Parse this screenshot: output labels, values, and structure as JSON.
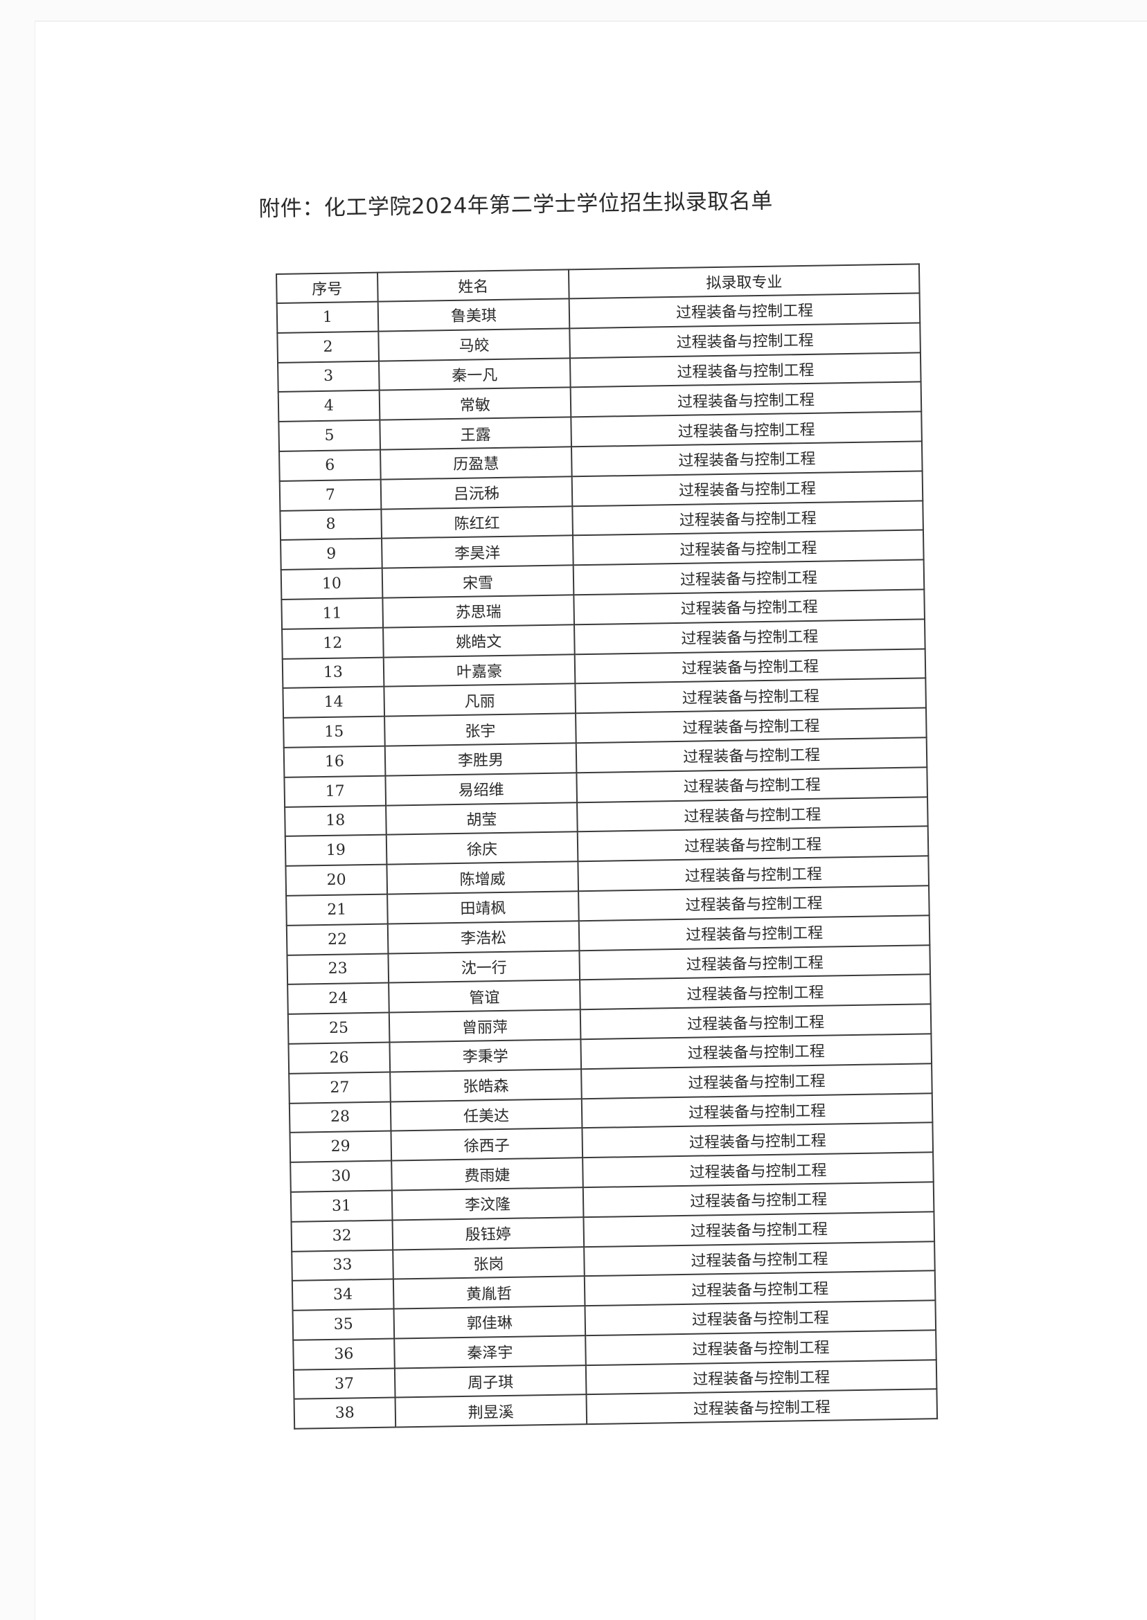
{
  "title": "附件：化工学院2024年第二学士学位招生拟录取名单",
  "table": {
    "headers": [
      "序号",
      "姓名",
      "拟录取专业"
    ],
    "rows": [
      [
        "1",
        "鲁美琪",
        "过程装备与控制工程"
      ],
      [
        "2",
        "马皎",
        "过程装备与控制工程"
      ],
      [
        "3",
        "秦一凡",
        "过程装备与控制工程"
      ],
      [
        "4",
        "常敏",
        "过程装备与控制工程"
      ],
      [
        "5",
        "王露",
        "过程装备与控制工程"
      ],
      [
        "6",
        "历盈慧",
        "过程装备与控制工程"
      ],
      [
        "7",
        "吕沅秭",
        "过程装备与控制工程"
      ],
      [
        "8",
        "陈红红",
        "过程装备与控制工程"
      ],
      [
        "9",
        "李昊洋",
        "过程装备与控制工程"
      ],
      [
        "10",
        "宋雪",
        "过程装备与控制工程"
      ],
      [
        "11",
        "苏思瑞",
        "过程装备与控制工程"
      ],
      [
        "12",
        "姚皓文",
        "过程装备与控制工程"
      ],
      [
        "13",
        "叶嘉豪",
        "过程装备与控制工程"
      ],
      [
        "14",
        "凡丽",
        "过程装备与控制工程"
      ],
      [
        "15",
        "张宇",
        "过程装备与控制工程"
      ],
      [
        "16",
        "李胜男",
        "过程装备与控制工程"
      ],
      [
        "17",
        "易绍维",
        "过程装备与控制工程"
      ],
      [
        "18",
        "胡莹",
        "过程装备与控制工程"
      ],
      [
        "19",
        "徐庆",
        "过程装备与控制工程"
      ],
      [
        "20",
        "陈增威",
        "过程装备与控制工程"
      ],
      [
        "21",
        "田靖枫",
        "过程装备与控制工程"
      ],
      [
        "22",
        "李浩松",
        "过程装备与控制工程"
      ],
      [
        "23",
        "沈一行",
        "过程装备与控制工程"
      ],
      [
        "24",
        "管谊",
        "过程装备与控制工程"
      ],
      [
        "25",
        "曾丽萍",
        "过程装备与控制工程"
      ],
      [
        "26",
        "李秉学",
        "过程装备与控制工程"
      ],
      [
        "27",
        "张皓森",
        "过程装备与控制工程"
      ],
      [
        "28",
        "任美达",
        "过程装备与控制工程"
      ],
      [
        "29",
        "徐西子",
        "过程装备与控制工程"
      ],
      [
        "30",
        "费雨婕",
        "过程装备与控制工程"
      ],
      [
        "31",
        "李汶隆",
        "过程装备与控制工程"
      ],
      [
        "32",
        "殷钰婷",
        "过程装备与控制工程"
      ],
      [
        "33",
        "张岗",
        "过程装备与控制工程"
      ],
      [
        "34",
        "黄胤哲",
        "过程装备与控制工程"
      ],
      [
        "35",
        "郭佳琳",
        "过程装备与控制工程"
      ],
      [
        "36",
        "秦泽宇",
        "过程装备与控制工程"
      ],
      [
        "37",
        "周子琪",
        "过程装备与控制工程"
      ],
      [
        "38",
        "荆昱溪",
        "过程装备与控制工程"
      ]
    ]
  }
}
